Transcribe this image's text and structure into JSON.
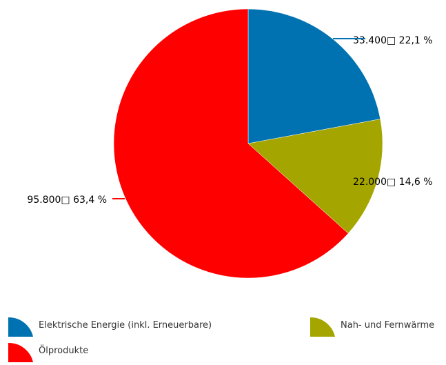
{
  "chart_data": {
    "type": "pie",
    "slices": [
      {
        "name": "Elektrische Energie (inkl. Erneuerbare)",
        "value": 33400,
        "value_label": "33.400□",
        "percent_label": "22,1 %",
        "color": "#0072b2"
      },
      {
        "name": "Nah- und Fernwärme",
        "value": 22000,
        "value_label": "22.000□",
        "percent_label": "14,6 %",
        "color": "#a5a500"
      },
      {
        "name": "Ölprodukte",
        "value": 95800,
        "value_label": "95.800□",
        "percent_label": "63,4 %",
        "color": "#ff0000"
      }
    ],
    "legend_position": "bottom",
    "start_angle": "12 o'clock",
    "direction": "clockwise"
  }
}
